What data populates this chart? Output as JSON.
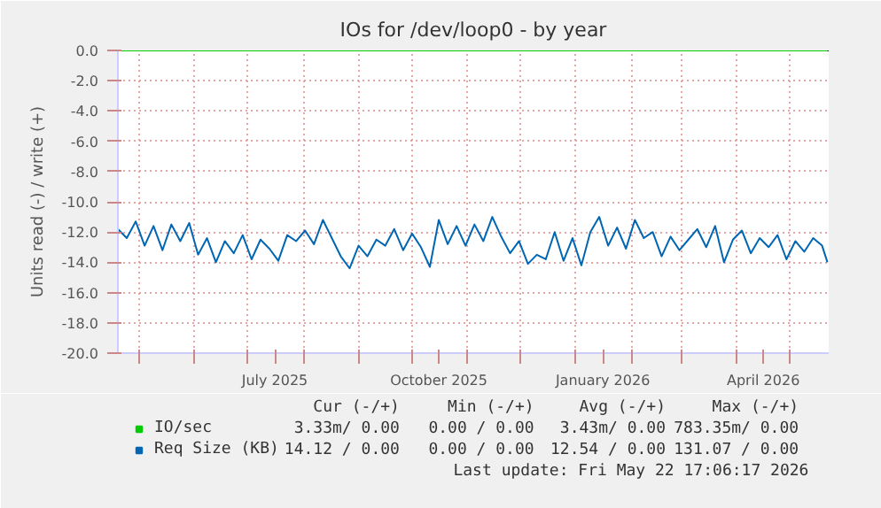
{
  "chart_data": {
    "type": "line",
    "title": "IOs for /dev/loop0 - by year",
    "ylabel": "Units read (-) / write (+)",
    "xlim": [
      "2025-04-19",
      "2026-05-22T17:06"
    ],
    "xticks": [
      {
        "value": "2025-05-01",
        "label": null
      },
      {
        "value": "2025-06-01",
        "label": null
      },
      {
        "value": "2025-07-01",
        "label": null
      },
      {
        "value": "2025-07-16",
        "label": "July 2025"
      },
      {
        "value": "2025-08-01",
        "label": null
      },
      {
        "value": "2025-09-01",
        "label": null
      },
      {
        "value": "2025-10-01",
        "label": null
      },
      {
        "value": "2025-10-16",
        "label": "October 2025"
      },
      {
        "value": "2025-11-01",
        "label": null
      },
      {
        "value": "2025-12-01",
        "label": null
      },
      {
        "value": "2026-01-01",
        "label": null
      },
      {
        "value": "2026-01-16",
        "label": "January 2026"
      },
      {
        "value": "2026-02-01",
        "label": null
      },
      {
        "value": "2026-03-01",
        "label": null
      },
      {
        "value": "2026-04-01",
        "label": null
      },
      {
        "value": "2026-04-16",
        "label": "April 2026"
      },
      {
        "value": "2026-05-01",
        "label": null
      }
    ],
    "ylim": [
      -20,
      0
    ],
    "yticks": [
      {
        "value": 0,
        "label": "0.0"
      },
      {
        "value": -2,
        "label": "-2.0"
      },
      {
        "value": -4,
        "label": "-4.0"
      },
      {
        "value": -6,
        "label": "-6.0"
      },
      {
        "value": -8,
        "label": "-8.0"
      },
      {
        "value": -10,
        "label": "-10.0"
      },
      {
        "value": -12,
        "label": "-12.0"
      },
      {
        "value": -14,
        "label": "-14.0"
      },
      {
        "value": -16,
        "label": "-16.0"
      },
      {
        "value": -18,
        "label": "-18.0"
      },
      {
        "value": -20,
        "label": "-20.0"
      }
    ],
    "grid": true,
    "legend": "bottom left",
    "marker": "none",
    "line_style": "solid",
    "x": [
      "2025-04-19",
      "2025-04-24",
      "2025-04-29",
      "2025-05-04",
      "2025-05-09",
      "2025-05-14",
      "2025-05-19",
      "2025-05-24",
      "2025-05-29",
      "2025-06-03",
      "2025-06-08",
      "2025-06-13",
      "2025-06-18",
      "2025-06-23",
      "2025-06-28",
      "2025-07-03",
      "2025-07-08",
      "2025-07-13",
      "2025-07-18",
      "2025-07-23",
      "2025-07-28",
      "2025-08-02",
      "2025-08-07",
      "2025-08-12",
      "2025-08-17",
      "2025-08-22",
      "2025-08-27",
      "2025-09-01",
      "2025-09-06",
      "2025-09-11",
      "2025-09-16",
      "2025-09-21",
      "2025-09-26",
      "2025-10-01",
      "2025-10-06",
      "2025-10-11",
      "2025-10-16",
      "2025-10-21",
      "2025-10-26",
      "2025-10-31",
      "2025-11-05",
      "2025-11-10",
      "2025-11-15",
      "2025-11-20",
      "2025-11-25",
      "2025-11-30",
      "2025-12-05",
      "2025-12-10",
      "2025-12-15",
      "2025-12-20",
      "2025-12-25",
      "2025-12-30",
      "2026-01-04",
      "2026-01-09",
      "2026-01-14",
      "2026-01-19",
      "2026-01-24",
      "2026-01-29",
      "2026-02-03",
      "2026-02-08",
      "2026-02-13",
      "2026-02-18",
      "2026-02-23",
      "2026-02-28",
      "2026-03-05",
      "2026-03-10",
      "2026-03-15",
      "2026-03-20",
      "2026-03-25",
      "2026-03-30",
      "2026-04-04",
      "2026-04-09",
      "2026-04-14",
      "2026-04-19",
      "2026-04-24",
      "2026-04-29",
      "2026-05-04",
      "2026-05-09",
      "2026-05-14",
      "2026-05-19",
      "2026-05-22"
    ],
    "series": [
      {
        "name": "IO/sec",
        "color": "#00cc00",
        "values": [
          0,
          0,
          0,
          0,
          0,
          0,
          0,
          0,
          0,
          0,
          0,
          0,
          0,
          0,
          0,
          0,
          0,
          0,
          0,
          0,
          0,
          0,
          0,
          0,
          0,
          0,
          0,
          0,
          0,
          0,
          0,
          0,
          0,
          0,
          0,
          0,
          0,
          0,
          0,
          0,
          0,
          0,
          0,
          0,
          0,
          0,
          0,
          0,
          0,
          0,
          0,
          0,
          0,
          0,
          0,
          0,
          0,
          0,
          0,
          0,
          0,
          0,
          0,
          0,
          0,
          0,
          0,
          0,
          0,
          0,
          0,
          0,
          0,
          0,
          0,
          0,
          0,
          0,
          0,
          0,
          0
        ]
      },
      {
        "name": "Req Size (KB)",
        "color": "#0066b3",
        "values": [
          -11.8,
          -12.4,
          -11.3,
          -12.9,
          -11.6,
          -13.2,
          -11.5,
          -12.6,
          -11.4,
          -13.5,
          -12.4,
          -14.0,
          -12.6,
          -13.4,
          -12.2,
          -13.8,
          -12.5,
          -13.1,
          -13.9,
          -12.2,
          -12.6,
          -11.9,
          -12.8,
          -11.2,
          -12.4,
          -13.6,
          -14.4,
          -12.9,
          -13.6,
          -12.5,
          -12.9,
          -11.8,
          -13.2,
          -12.1,
          -13.0,
          -14.3,
          -11.2,
          -12.8,
          -11.6,
          -12.9,
          -11.5,
          -12.6,
          -11.0,
          -12.3,
          -13.4,
          -12.6,
          -14.1,
          -13.5,
          -13.8,
          -12.0,
          -13.9,
          -12.4,
          -14.2,
          -12.0,
          -11.0,
          -12.9,
          -11.7,
          -13.1,
          -11.2,
          -12.4,
          -12.0,
          -13.6,
          -12.3,
          -13.2,
          -12.5,
          -11.8,
          -13.0,
          -11.6,
          -14.0,
          -12.5,
          -11.9,
          -13.4,
          -12.4,
          -13.0,
          -12.2,
          -13.8,
          -12.6,
          -13.3,
          -12.4,
          -12.9,
          -14.0
        ]
      }
    ],
    "annotations": [
      "Cur (-/+)",
      "Min (-/+)",
      "Avg (-/+)",
      "Max (-/+)",
      "3.33m/ 0.00",
      "0.00 / 0.00",
      "3.43m/ 0.00",
      "783.35m/ 0.00",
      "14.12 / 0.00",
      "0.00 / 0.00",
      "12.54 / 0.00",
      "131.07 / 0.00",
      "Last update: Fri May 22 17:06:17 2026"
    ]
  }
}
